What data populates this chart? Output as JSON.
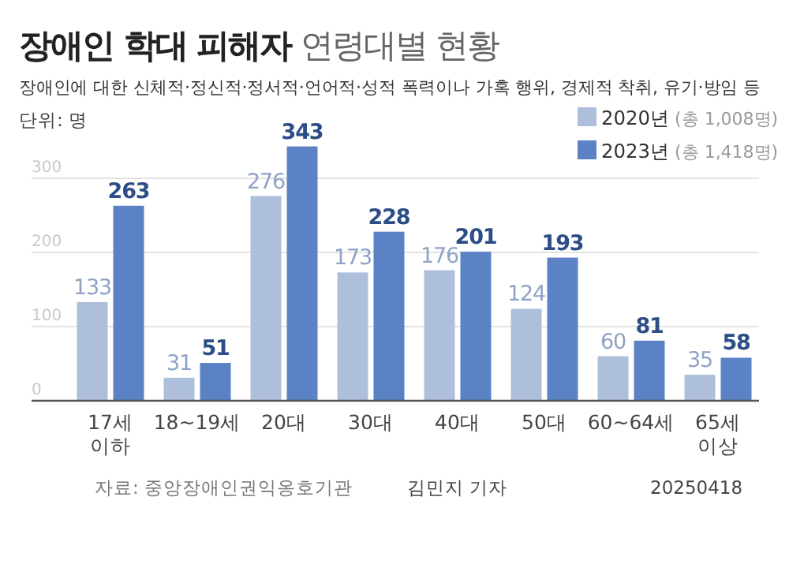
{
  "chart_data": {
    "type": "bar",
    "title": "**장애인 학대 피해자** 연령대별 현황",
    "subtitle": "장애인에 대한 신체적·정신적·정서적·언어적·성적 폭력이나 가혹 행위, 경제적 착취, 유기·방임 등",
    "categories": [
      "17세\n이하",
      "18~19세",
      "20대",
      "30대",
      "40대",
      "50대",
      "60~64세",
      "65세\n이상"
    ],
    "series": [
      {
        "name": "2020년 (총 1,008명)",
        "color": "#aebfdc",
        "values": [
          133,
          31,
          276,
          173,
          176,
          124,
          60,
          35
        ]
      },
      {
        "name": "2023년 (총 1,418명)",
        "color": "#5a82c4",
        "values": [
          263,
          51,
          343,
          228,
          201,
          193,
          81,
          58
        ]
      }
    ],
    "ylim": [
      0,
      350
    ],
    "yticks": [
      0,
      100,
      200,
      300
    ],
    "grid": "y",
    "legend": "top right",
    "data_labels": true,
    "annotations": [
      "단위: 명",
      "자료: 중앙장애인권익옹호기관",
      "김민지 기자",
      "20250418"
    ]
  }
}
